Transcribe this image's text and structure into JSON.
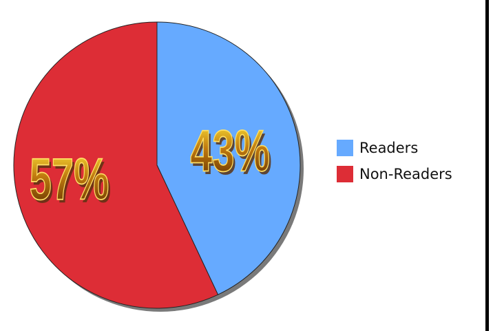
{
  "chart_data": {
    "type": "pie",
    "title": "",
    "start_angle_deg": 0,
    "direction": "clockwise",
    "slices": [
      {
        "name": "Readers",
        "value": 43,
        "label": "43%",
        "color": "#66aaff"
      },
      {
        "name": "Non-Readers",
        "value": 57,
        "label": "57%",
        "color": "#dd2d36"
      }
    ],
    "legend": {
      "position": "right",
      "entries": [
        {
          "label": "Readers",
          "color": "#66aaff"
        },
        {
          "label": "Non-Readers",
          "color": "#dd2d36"
        }
      ]
    },
    "label_color_gradient": [
      "#ffe83a",
      "#c07a10",
      "#5a2a00"
    ],
    "label_shadow_color": "#5c3412"
  }
}
